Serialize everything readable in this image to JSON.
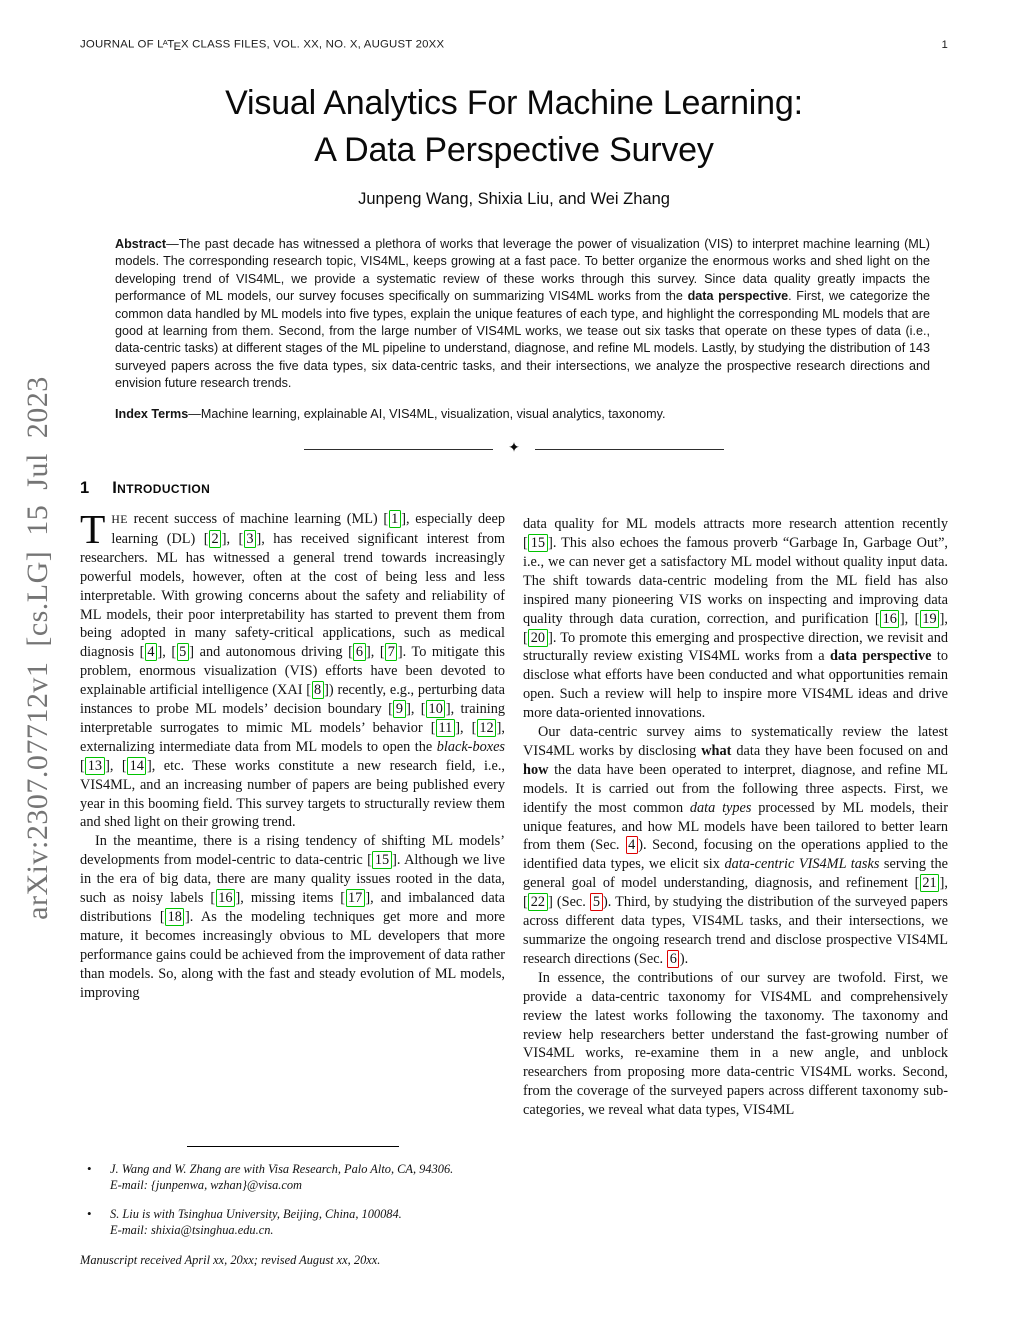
{
  "colors": {
    "cite_border": "#00c300",
    "secref_border": "#dd0000",
    "watermark_gray": "#757575"
  },
  "watermark": "arXiv:2307.07712v1  [cs.LG]  15 Jul 2023",
  "header": {
    "journal_segments": [
      {
        "t": "JOURNAL OF L"
      },
      {
        "t": "A",
        "s": "latex-a"
      },
      {
        "t": "T"
      },
      {
        "t": "E",
        "s": "latex-e"
      },
      {
        "t": "X CLASS FILES, VOL. XX, NO. X, AUGUST 20XX"
      }
    ],
    "page_number": "1"
  },
  "title": {
    "line1": "Visual Analytics For Machine Learning:",
    "line2": "A Data Perspective Survey"
  },
  "authors": "Junpeng Wang, Shixia Liu, and Wei Zhang",
  "abstract": {
    "segments": [
      {
        "t": "Abstract",
        "s": "bold"
      },
      {
        "t": "—The past decade has witnessed a plethora of works that leverage the power of visualization (VIS) to interpret machine learning (ML) models. The corresponding research topic, VIS4ML, keeps growing at a fast pace. To better organize the enormous works and shed light on the developing trend of VIS4ML, we provide a systematic review of these works through this survey. Since data quality greatly impacts the performance of ML models, our survey focuses specifically on summarizing VIS4ML works from the "
      },
      {
        "t": "data perspective",
        "s": "bold"
      },
      {
        "t": ". First, we categorize the common data handled by ML models into five types, explain the unique features of each type, and highlight the corresponding ML models that are good at learning from them. Second, from the large number of VIS4ML works, we tease out six tasks that operate on these types of data (i.e., data-centric tasks) at different stages of the ML pipeline to understand, diagnose, and refine ML models. Lastly, by studying the distribution of 143 surveyed papers across the five data types, six data-centric tasks, and their intersections, we analyze the prospective research directions and envision future research trends."
      }
    ]
  },
  "index_terms": {
    "segments": [
      {
        "t": "Index Terms",
        "s": "bold"
      },
      {
        "t": "—Machine learning, explainable AI, VIS4ML, visualization, visual analytics, taxonomy."
      }
    ]
  },
  "separator_glyph": "✦",
  "section": {
    "number": "1",
    "title": "Introduction"
  },
  "intro": {
    "left": {
      "p1": [
        {
          "t": "T",
          "s": "dropcap"
        },
        {
          "t": "HE",
          "s": "smallcaps"
        },
        {
          "t": " recent success of machine learning (ML) ["
        },
        {
          "t": "1",
          "s": "cite"
        },
        {
          "t": "], especially deep learning (DL) ["
        },
        {
          "t": "2",
          "s": "cite"
        },
        {
          "t": "], ["
        },
        {
          "t": "3",
          "s": "cite"
        },
        {
          "t": "], has received significant interest from researchers. ML has witnessed a general trend towards increasingly powerful models, however, often at the cost of being less and less interpretable. With growing concerns about the safety and reliability of ML models, their poor interpretability has started to prevent them from being adopted in many safety-critical applications, such as medical diagnosis ["
        },
        {
          "t": "4",
          "s": "cite"
        },
        {
          "t": "], ["
        },
        {
          "t": "5",
          "s": "cite"
        },
        {
          "t": "] and autonomous driving ["
        },
        {
          "t": "6",
          "s": "cite"
        },
        {
          "t": "], ["
        },
        {
          "t": "7",
          "s": "cite"
        },
        {
          "t": "]. To mitigate this problem, enormous visualization (VIS) efforts have been devoted to explainable artificial intelligence (XAI ["
        },
        {
          "t": "8",
          "s": "cite"
        },
        {
          "t": "]) recently, e.g., perturbing data instances to probe ML models’ decision boundary ["
        },
        {
          "t": "9",
          "s": "cite"
        },
        {
          "t": "], ["
        },
        {
          "t": "10",
          "s": "cite"
        },
        {
          "t": "], training interpretable surrogates to mimic ML models’ behavior ["
        },
        {
          "t": "11",
          "s": "cite"
        },
        {
          "t": "], ["
        },
        {
          "t": "12",
          "s": "cite"
        },
        {
          "t": "], externalizing intermediate data from ML models to open the "
        },
        {
          "t": "black-boxes",
          "s": "italic"
        },
        {
          "t": " ["
        },
        {
          "t": "13",
          "s": "cite"
        },
        {
          "t": "], ["
        },
        {
          "t": "14",
          "s": "cite"
        },
        {
          "t": "], etc. These works constitute a new research field, i.e., VIS4ML, and an increasing number of papers are being published every year in this booming field. This survey targets to structurally review them and shed light on their growing trend."
        }
      ],
      "p2": [
        {
          "t": "In the meantime, there is a rising tendency of shifting ML models’ developments from model-centric to data-centric ["
        },
        {
          "t": "15",
          "s": "cite"
        },
        {
          "t": "]. Although we live in the era of big data, there are many quality issues rooted in the data, such as noisy labels ["
        },
        {
          "t": "16",
          "s": "cite"
        },
        {
          "t": "], missing items ["
        },
        {
          "t": "17",
          "s": "cite"
        },
        {
          "t": "], and imbalanced data distributions ["
        },
        {
          "t": "18",
          "s": "cite"
        },
        {
          "t": "]. As the modeling techniques get more and more mature, it becomes increasingly obvious to ML developers that more performance gains could be achieved from the improvement of data rather than models. So, along with the fast and steady evolution of ML models, improving"
        }
      ]
    },
    "right": {
      "p1": [
        {
          "t": "data quality for ML models attracts more research attention recently ["
        },
        {
          "t": "15",
          "s": "cite"
        },
        {
          "t": "]. This also echoes the famous proverb “Garbage In, Garbage Out”, i.e., we can never get a satisfactory ML model without quality input data. The shift towards data-centric modeling from the ML field has also inspired many pioneering VIS works on inspecting and improving data quality through data curation, correction, and purification ["
        },
        {
          "t": "16",
          "s": "cite"
        },
        {
          "t": "], ["
        },
        {
          "t": "19",
          "s": "cite"
        },
        {
          "t": "], ["
        },
        {
          "t": "20",
          "s": "cite"
        },
        {
          "t": "]. To promote this emerging and prospective direction, we revisit and structurally review existing VIS4ML works from a "
        },
        {
          "t": "data perspective",
          "s": "bold"
        },
        {
          "t": " to disclose what efforts have been conducted and what opportunities remain open. Such a review will help to inspire more VIS4ML ideas and drive more data-oriented innovations."
        }
      ],
      "p2": [
        {
          "t": "Our data-centric survey aims to systematically review the latest VIS4ML works by disclosing "
        },
        {
          "t": "what",
          "s": "bold"
        },
        {
          "t": " data they have been focused on and "
        },
        {
          "t": "how",
          "s": "bold"
        },
        {
          "t": " the data have been operated to interpret, diagnose, and refine ML models. It is carried out from the following three aspects. First, we identify the most common "
        },
        {
          "t": "data types",
          "s": "italic"
        },
        {
          "t": " processed by ML models, their unique features, and how ML models have been tailored to better learn from them (Sec. "
        },
        {
          "t": "4",
          "s": "secref"
        },
        {
          "t": "). Second, focusing on the operations applied to the identified data types, we elicit six "
        },
        {
          "t": "data-centric VIS4ML tasks",
          "s": "italic"
        },
        {
          "t": " serving the general goal of model understanding, diagnosis, and refinement ["
        },
        {
          "t": "21",
          "s": "cite"
        },
        {
          "t": "], ["
        },
        {
          "t": "22",
          "s": "cite"
        },
        {
          "t": "] (Sec. "
        },
        {
          "t": "5",
          "s": "secref"
        },
        {
          "t": "). Third, by studying the distribution of the surveyed papers across different data types, VIS4ML tasks, and their intersections, we summarize the ongoing research trend and disclose prospective VIS4ML research directions (Sec. "
        },
        {
          "t": "6",
          "s": "secref"
        },
        {
          "t": ")."
        }
      ],
      "p3": [
        {
          "t": "In essence, the contributions of our survey are twofold. First, we provide a data-centric taxonomy for VIS4ML and comprehensively review the latest works following the taxonomy. The taxonomy and review help researchers better understand the fast-growing number of VIS4ML works, re-examine them in a new angle, and unblock researchers from proposing more data-centric VIS4ML works. Second, from the coverage of the surveyed papers across different taxonomy sub-categories, we reveal what data types, VIS4ML"
        }
      ]
    }
  },
  "footnotes": {
    "items": [
      {
        "affiliation": "J. Wang and W. Zhang are with Visa Research, Palo Alto, CA, 94306.",
        "email": "E-mail: {junpenwa, wzhan}@visa.com"
      },
      {
        "affiliation": "S. Liu is with Tsinghua University, Beijing, China, 100084.",
        "email": "E-mail: shixia@tsinghua.edu.cn."
      }
    ],
    "manuscript": "Manuscript received April xx, 20xx; revised August xx, 20xx."
  }
}
